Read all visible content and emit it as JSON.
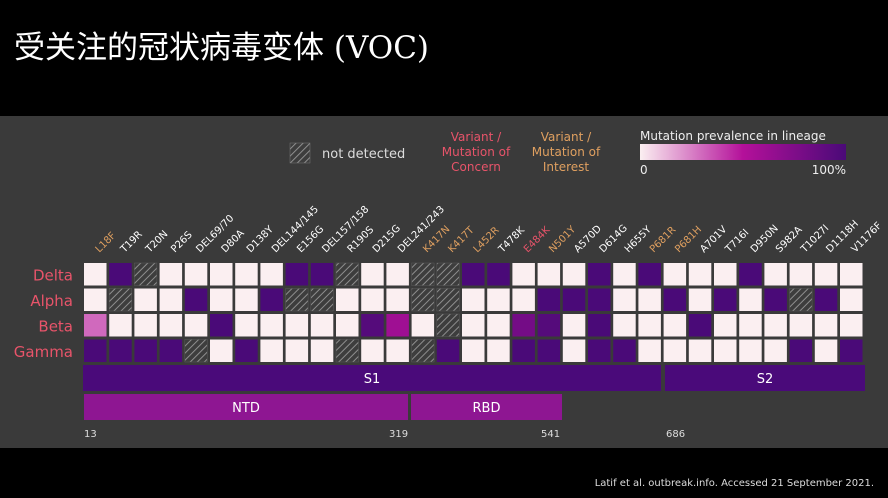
{
  "title": "受关注的冠状病毒变体 (VOC)",
  "citation": "Latif et al. outbreak.info. Accessed 21 September 2021.",
  "legend": {
    "not_detected": "not detected",
    "voc_line1": "Variant /",
    "voc_line2": "Mutation of",
    "voc_line3": "Concern",
    "voi_line1": "Variant /",
    "voi_line2": "Mutation of",
    "voi_line3": "Interest",
    "prevalence_title": "Mutation prevalence in lineage",
    "prevalence_min": "0",
    "prevalence_max": "100%"
  },
  "colors": {
    "voc": "#e8546a",
    "voi": "#e0a060",
    "normal": "#ffffff",
    "row_label": "#e8546a",
    "scale_low": "#fbeff1",
    "scale_mid": "#b4109a",
    "scale_high": "#4a0a78",
    "spike_domain": "#4a0a7a",
    "subdomain": "#8e1692"
  },
  "chart_data": {
    "type": "heatmap",
    "rows": [
      "Delta",
      "Alpha",
      "Beta",
      "Gamma"
    ],
    "columns": [
      {
        "label": "L18F",
        "class": "voi"
      },
      {
        "label": "T19R",
        "class": "normal"
      },
      {
        "label": "T20N",
        "class": "normal"
      },
      {
        "label": "P26S",
        "class": "normal"
      },
      {
        "label": "DEL69/70",
        "class": "normal"
      },
      {
        "label": "D80A",
        "class": "normal"
      },
      {
        "label": "D138Y",
        "class": "normal"
      },
      {
        "label": "DEL144/145",
        "class": "normal"
      },
      {
        "label": "E156G",
        "class": "normal"
      },
      {
        "label": "DEL157/158",
        "class": "normal"
      },
      {
        "label": "R190S",
        "class": "normal"
      },
      {
        "label": "D215G",
        "class": "normal"
      },
      {
        "label": "DEL241/243",
        "class": "normal"
      },
      {
        "label": "K417N",
        "class": "voi"
      },
      {
        "label": "K417T",
        "class": "voi"
      },
      {
        "label": "L452R",
        "class": "voi"
      },
      {
        "label": "T478K",
        "class": "normal"
      },
      {
        "label": "E484K",
        "class": "voc"
      },
      {
        "label": "N501Y",
        "class": "voi"
      },
      {
        "label": "A570D",
        "class": "normal"
      },
      {
        "label": "D614G",
        "class": "normal"
      },
      {
        "label": "H655Y",
        "class": "normal"
      },
      {
        "label": "P681R",
        "class": "voi"
      },
      {
        "label": "P681H",
        "class": "voi"
      },
      {
        "label": "A701V",
        "class": "normal"
      },
      {
        "label": "T716I",
        "class": "normal"
      },
      {
        "label": "D950N",
        "class": "normal"
      },
      {
        "label": "S982A",
        "class": "normal"
      },
      {
        "label": "T1027I",
        "class": "normal"
      },
      {
        "label": "D1118H",
        "class": "normal"
      },
      {
        "label": "V1176F",
        "class": "normal"
      }
    ],
    "values": [
      [
        0,
        100,
        null,
        0,
        0,
        0,
        0,
        0,
        100,
        100,
        null,
        0,
        0,
        null,
        null,
        100,
        100,
        0,
        0,
        0,
        100,
        0,
        100,
        0,
        0,
        0,
        100,
        0,
        0,
        0,
        0
      ],
      [
        0,
        null,
        0,
        0,
        100,
        0,
        0,
        100,
        null,
        null,
        0,
        0,
        0,
        null,
        null,
        0,
        0,
        0,
        100,
        100,
        100,
        0,
        0,
        100,
        0,
        100,
        0,
        100,
        null,
        100,
        0
      ],
      [
        30,
        0,
        0,
        0,
        0,
        100,
        0,
        0,
        0,
        0,
        0,
        95,
        60,
        0,
        null,
        0,
        0,
        80,
        95,
        0,
        100,
        0,
        0,
        0,
        100,
        0,
        0,
        0,
        0,
        0,
        0
      ],
      [
        100,
        100,
        100,
        100,
        null,
        0,
        100,
        0,
        0,
        0,
        null,
        0,
        0,
        null,
        100,
        0,
        0,
        100,
        100,
        0,
        100,
        100,
        0,
        0,
        0,
        0,
        0,
        0,
        100,
        0,
        100
      ]
    ],
    "value_scale": [
      0,
      100
    ],
    "domains": [
      {
        "name": "S1",
        "level": "domain"
      },
      {
        "name": "S2",
        "level": "domain"
      },
      {
        "name": "NTD",
        "level": "subdomain"
      },
      {
        "name": "RBD",
        "level": "subdomain"
      }
    ],
    "position_labels": [
      "13",
      "319",
      "541",
      "686"
    ]
  }
}
